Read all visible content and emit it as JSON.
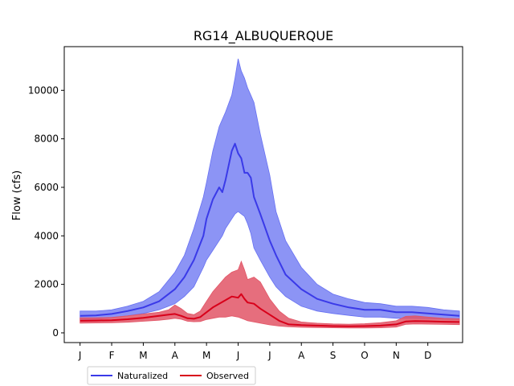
{
  "chart_data": {
    "type": "area",
    "title": "RG14_ALBUQUERQUE",
    "xlabel": "",
    "ylabel": "Flow (cfs)",
    "ylim": [
      -400,
      11800
    ],
    "xlim": [
      -0.5,
      12.1
    ],
    "grid": false,
    "legend_placement": "bottom-left",
    "x_ticks": [
      {
        "x": 0,
        "label": "J"
      },
      {
        "x": 1,
        "label": "F"
      },
      {
        "x": 2,
        "label": "M"
      },
      {
        "x": 3,
        "label": "A"
      },
      {
        "x": 4,
        "label": "M"
      },
      {
        "x": 5,
        "label": "J"
      },
      {
        "x": 6,
        "label": "J"
      },
      {
        "x": 7,
        "label": "A"
      },
      {
        "x": 8,
        "label": "S"
      },
      {
        "x": 9,
        "label": "O"
      },
      {
        "x": 10,
        "label": "N"
      },
      {
        "x": 11,
        "label": "D"
      }
    ],
    "y_ticks": [
      0,
      2000,
      4000,
      6000,
      8000,
      10000
    ],
    "series": [
      {
        "name": "Naturalized",
        "color": "#3a3ae8",
        "band_color": "#6670f2",
        "x": [
          0,
          0.5,
          1,
          1.5,
          2,
          2.5,
          3,
          3.3,
          3.6,
          3.9,
          4.0,
          4.2,
          4.4,
          4.5,
          4.6,
          4.8,
          4.9,
          5.0,
          5.1,
          5.2,
          5.3,
          5.4,
          5.5,
          5.7,
          6.0,
          6.2,
          6.5,
          7.0,
          7.5,
          8.0,
          8.5,
          9.0,
          9.5,
          10.0,
          10.5,
          11.0,
          11.5,
          12.0
        ],
        "mean": [
          700,
          720,
          780,
          900,
          1050,
          1300,
          1800,
          2300,
          3000,
          4000,
          4700,
          5500,
          6000,
          5800,
          6300,
          7500,
          7800,
          7400,
          7200,
          6600,
          6600,
          6400,
          5600,
          4900,
          3800,
          3200,
          2400,
          1800,
          1400,
          1200,
          1050,
          950,
          950,
          850,
          850,
          800,
          750,
          700
        ],
        "low": [
          550,
          560,
          620,
          700,
          800,
          950,
          1200,
          1500,
          1900,
          2700,
          3000,
          3400,
          3800,
          4000,
          4300,
          4700,
          4900,
          5000,
          4900,
          4800,
          4500,
          4100,
          3500,
          3000,
          2300,
          1900,
          1500,
          1100,
          900,
          800,
          720,
          650,
          650,
          600,
          600,
          580,
          560,
          550
        ],
        "high": [
          900,
          900,
          950,
          1100,
          1300,
          1700,
          2500,
          3200,
          4300,
          5600,
          6200,
          7500,
          8500,
          8800,
          9100,
          9800,
          10500,
          11300,
          10800,
          10500,
          10100,
          9800,
          9500,
          8200,
          6500,
          5000,
          3800,
          2700,
          2000,
          1600,
          1400,
          1250,
          1200,
          1100,
          1100,
          1050,
          950,
          900
        ]
      },
      {
        "name": "Observed",
        "color": "#d8001a",
        "band_color": "#e25566",
        "x": [
          0,
          0.5,
          1,
          1.5,
          2,
          2.5,
          2.8,
          3.0,
          3.2,
          3.4,
          3.6,
          3.8,
          4.0,
          4.2,
          4.4,
          4.6,
          4.8,
          5.0,
          5.1,
          5.2,
          5.3,
          5.5,
          5.7,
          6.0,
          6.3,
          6.6,
          7.0,
          7.5,
          8.0,
          8.5,
          9.0,
          9.5,
          10.0,
          10.3,
          10.6,
          11.0,
          11.5,
          12.0
        ],
        "mean": [
          500,
          510,
          520,
          560,
          620,
          700,
          750,
          780,
          700,
          600,
          580,
          650,
          850,
          1050,
          1200,
          1350,
          1500,
          1450,
          1600,
          1400,
          1250,
          1200,
          1000,
          750,
          500,
          350,
          320,
          300,
          280,
          270,
          280,
          300,
          350,
          470,
          490,
          480,
          460,
          450
        ],
        "low": [
          400,
          410,
          420,
          440,
          480,
          520,
          560,
          600,
          560,
          480,
          460,
          470,
          550,
          600,
          650,
          650,
          700,
          650,
          600,
          550,
          500,
          450,
          400,
          330,
          280,
          250,
          230,
          220,
          210,
          200,
          200,
          210,
          240,
          350,
          370,
          360,
          350,
          340
        ],
        "high": [
          620,
          620,
          640,
          700,
          780,
          850,
          950,
          1150,
          1000,
          800,
          750,
          900,
          1300,
          1700,
          2000,
          2300,
          2500,
          2600,
          2950,
          2600,
          2200,
          2300,
          2100,
          1400,
          900,
          600,
          450,
          400,
          370,
          360,
          380,
          420,
          500,
          680,
          700,
          650,
          600,
          580
        ]
      }
    ]
  }
}
